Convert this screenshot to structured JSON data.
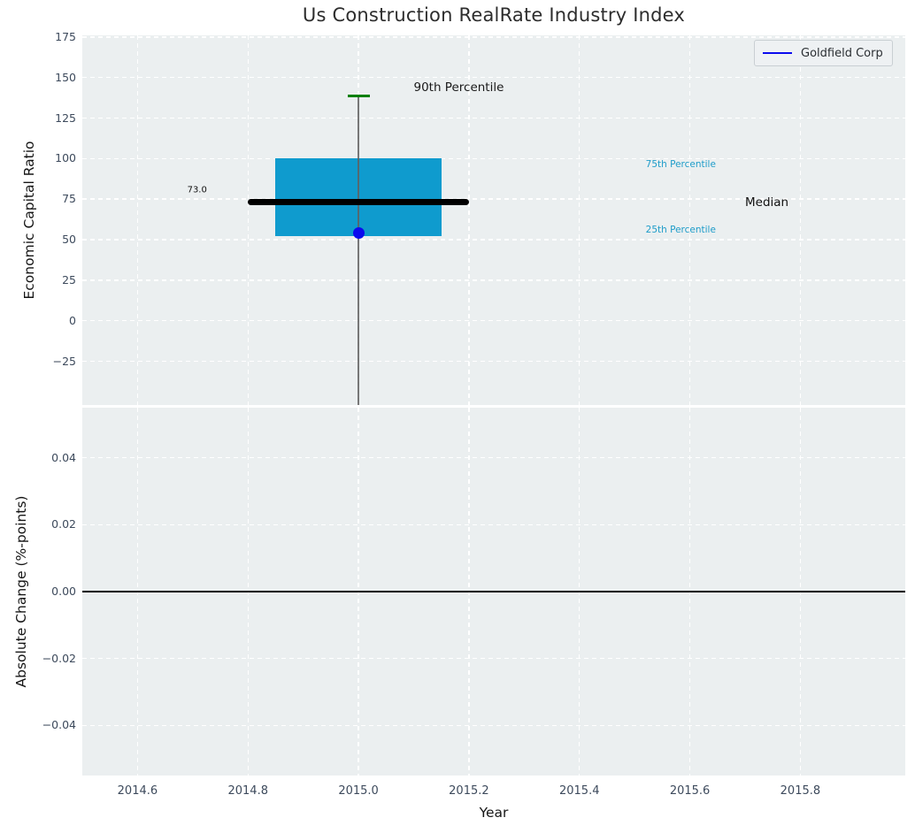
{
  "figure": {
    "title": "Us Construction RealRate Industry Index",
    "xlabel": "Year"
  },
  "legend": {
    "label": "Goldfield Corp"
  },
  "colors": {
    "figure_bg": "#ffffff",
    "axes_bg": "#ebeff0",
    "grid": "#ffffff",
    "box_fill": "#0f9bce",
    "median_line": "#000000",
    "whisker": "#606060",
    "cap_90th": "#008000",
    "marker": "#0b0bee",
    "legend_line": "#0b0bee",
    "tick_label": "#3d4a5c",
    "percentile_text": "#1e9cc9",
    "zero_line": "#000000"
  },
  "chart_data": [
    {
      "type": "box",
      "title": "Us Construction RealRate Industry Index",
      "ylabel": "Economic Capital Ratio",
      "xlabel": "Year",
      "xlim": [
        2014.5,
        2015.99
      ],
      "ylim": [
        -52,
        176
      ],
      "xticks": {
        "values": [
          2014.6,
          2014.8,
          2015.0,
          2015.2,
          2015.4,
          2015.6,
          2015.8
        ],
        "labels": [
          "2014.6",
          "2014.8",
          "2015.0",
          "2015.2",
          "2015.4",
          "2015.6",
          "2015.8"
        ],
        "show_labels": false
      },
      "yticks": {
        "values": [
          175,
          150,
          125,
          100,
          75,
          50,
          25,
          0,
          -25
        ],
        "labels": [
          "175",
          "150",
          "125",
          "100",
          "75",
          "50",
          "25",
          "0",
          "−25"
        ]
      },
      "grid": "white dashed, on",
      "legend": {
        "label": "Goldfield Corp",
        "position": "upper right"
      },
      "box": {
        "x_center": 2015.0,
        "box_x_range": [
          2014.85,
          2015.15
        ],
        "median": 73.0,
        "median_label": "73.0",
        "median_x_range": [
          2014.8,
          2015.2
        ],
        "percentile_25": 52,
        "percentile_75": 100,
        "percentile_90": 138.6,
        "whisker_low": "clipped below axis (< -52)"
      },
      "series": [
        {
          "name": "Goldfield Corp",
          "type": "scatter",
          "x": [
            2015.0
          ],
          "y": [
            54
          ],
          "marker": "circle"
        }
      ],
      "annotations": [
        {
          "text": "90th Percentile",
          "x": 2015.1,
          "y": 143.8,
          "size": 13.5,
          "color": "#1a1a1a"
        },
        {
          "text": "75th Percentile",
          "x": 2015.52,
          "y": 96.5,
          "size": 10.5,
          "color": "#1e9cc9"
        },
        {
          "text": "Median",
          "x": 2015.7,
          "y": 72.8,
          "size": 13.5,
          "color": "#111111"
        },
        {
          "text": "25th Percentile",
          "x": 2015.52,
          "y": 56.0,
          "size": 10.5,
          "color": "#1e9cc9"
        },
        {
          "text": "73.0",
          "x": 2014.69,
          "y": 80.5,
          "size": 10,
          "color": "#111111"
        }
      ]
    },
    {
      "type": "line",
      "ylabel": "Absolute Change (%-points)",
      "xlim": [
        2014.5,
        2015.99
      ],
      "ylim": [
        -0.055,
        0.055
      ],
      "xticks": {
        "values": [
          2014.6,
          2014.8,
          2015.0,
          2015.2,
          2015.4,
          2015.6,
          2015.8
        ],
        "labels": [
          "2014.6",
          "2014.8",
          "2015.0",
          "2015.2",
          "2015.4",
          "2015.6",
          "2015.8"
        ],
        "show_labels": true
      },
      "yticks": {
        "values": [
          0.04,
          0.02,
          0,
          -0.02,
          -0.04
        ],
        "labels": [
          "0.04",
          "0.02",
          "0.00",
          "−0.02",
          "−0.04"
        ]
      },
      "grid": "white dashed, on",
      "zero_line_y": 0.0,
      "series": []
    }
  ]
}
